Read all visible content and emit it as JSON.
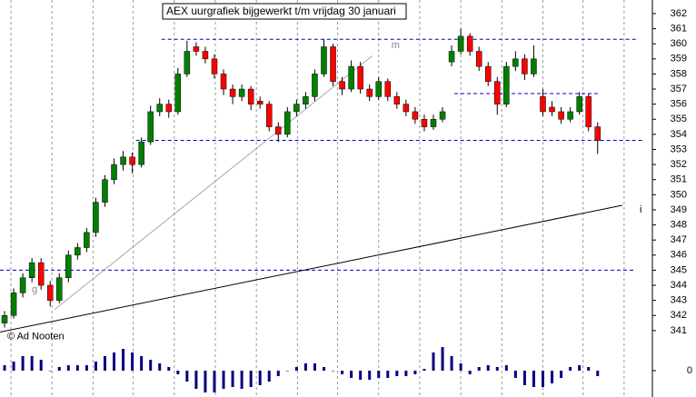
{
  "chart_data": {
    "type": "candlestick",
    "title": "AEX uurgrafiek bijgewerkt t/m vrijdag 30 januari",
    "annotations": [
      {
        "text": "g",
        "x": 3.0,
        "y": 343.7,
        "color": "#888888"
      },
      {
        "text": "m",
        "x": 42.4,
        "y": 359.9,
        "color": "#888888"
      },
      {
        "text": "i",
        "x": 69.6,
        "y": 349.0,
        "color": "#000000"
      },
      {
        "text": "© Ad Nooten",
        "x": 0.3,
        "y": 340.6,
        "color": "#000000"
      }
    ],
    "candles": [
      [
        341.5,
        342.3,
        341.2,
        342.0
      ],
      [
        342.0,
        343.8,
        341.8,
        343.5
      ],
      [
        343.5,
        344.8,
        343.2,
        344.5
      ],
      [
        344.5,
        345.8,
        344.2,
        345.5
      ],
      [
        345.5,
        345.8,
        343.7,
        344.0
      ],
      [
        344.0,
        344.3,
        342.6,
        343.0
      ],
      [
        343.0,
        344.8,
        342.8,
        344.5
      ],
      [
        344.5,
        346.3,
        344.2,
        346.0
      ],
      [
        346.0,
        346.8,
        345.7,
        346.5
      ],
      [
        346.5,
        347.8,
        346.2,
        347.5
      ],
      [
        347.5,
        349.8,
        347.2,
        349.5
      ],
      [
        349.5,
        351.3,
        349.2,
        351.0
      ],
      [
        351.0,
        352.4,
        350.7,
        352.0
      ],
      [
        352.0,
        352.9,
        351.6,
        352.5
      ],
      [
        352.5,
        352.8,
        351.4,
        352.0
      ],
      [
        352.0,
        353.8,
        351.8,
        353.5
      ],
      [
        353.5,
        355.9,
        353.3,
        355.5
      ],
      [
        355.5,
        356.4,
        355.2,
        356.0
      ],
      [
        356.0,
        356.3,
        355.1,
        355.5
      ],
      [
        355.5,
        358.4,
        355.3,
        358.0
      ],
      [
        358.0,
        360.2,
        357.8,
        359.5
      ],
      [
        359.8,
        360.1,
        359.2,
        359.5
      ],
      [
        359.5,
        359.8,
        358.7,
        359.0
      ],
      [
        359.0,
        359.3,
        357.7,
        358.0
      ],
      [
        358.0,
        358.3,
        356.6,
        357.0
      ],
      [
        357.0,
        357.3,
        356.0,
        356.5
      ],
      [
        356.5,
        357.3,
        356.2,
        357.0
      ],
      [
        357.0,
        357.2,
        355.6,
        356.0
      ],
      [
        356.2,
        356.5,
        355.7,
        356.0
      ],
      [
        356.0,
        356.2,
        354.2,
        354.5
      ],
      [
        354.5,
        354.8,
        353.5,
        354.0
      ],
      [
        354.0,
        355.8,
        353.8,
        355.5
      ],
      [
        355.5,
        356.3,
        355.2,
        356.0
      ],
      [
        356.0,
        356.8,
        355.7,
        356.5
      ],
      [
        356.5,
        358.3,
        356.2,
        358.0
      ],
      [
        358.0,
        360.3,
        357.8,
        359.8
      ],
      [
        359.8,
        360.0,
        357.2,
        357.5
      ],
      [
        357.5,
        357.8,
        356.6,
        357.0
      ],
      [
        357.0,
        358.9,
        356.8,
        358.5
      ],
      [
        358.5,
        358.8,
        356.7,
        357.0
      ],
      [
        357.0,
        357.3,
        356.2,
        356.5
      ],
      [
        356.5,
        357.8,
        356.3,
        357.5
      ],
      [
        357.5,
        357.7,
        356.2,
        356.5
      ],
      [
        356.5,
        356.8,
        355.7,
        356.0
      ],
      [
        356.0,
        356.3,
        355.2,
        355.5
      ],
      [
        355.5,
        355.8,
        354.7,
        355.0
      ],
      [
        355.0,
        355.3,
        354.2,
        354.5
      ],
      [
        354.5,
        355.3,
        354.3,
        355.0
      ],
      [
        355.0,
        355.8,
        354.8,
        355.5
      ],
      [
        358.8,
        359.9,
        358.5,
        359.5
      ],
      [
        359.5,
        361.0,
        359.3,
        360.5
      ],
      [
        360.5,
        360.7,
        359.2,
        359.5
      ],
      [
        359.5,
        359.8,
        358.2,
        358.5
      ],
      [
        358.5,
        358.8,
        357.2,
        357.5
      ],
      [
        357.5,
        357.8,
        355.3,
        356.0
      ],
      [
        356.0,
        358.8,
        355.8,
        358.5
      ],
      [
        358.5,
        359.5,
        358.2,
        359.0
      ],
      [
        359.0,
        359.3,
        357.6,
        358.0
      ],
      [
        358.0,
        359.9,
        357.8,
        359.0
      ],
      [
        356.5,
        357.0,
        355.2,
        355.5
      ],
      [
        355.8,
        356.2,
        355.2,
        355.5
      ],
      [
        355.5,
        355.8,
        354.7,
        355.0
      ],
      [
        355.0,
        355.8,
        354.8,
        355.5
      ],
      [
        355.5,
        356.8,
        355.3,
        356.5
      ],
      [
        356.5,
        356.7,
        354.2,
        354.5
      ],
      [
        354.5,
        354.8,
        352.7,
        353.6
      ]
    ],
    "up_color": "#008000",
    "down_color": "#ff0000",
    "xlim": [
      -0.5,
      71
    ],
    "ylim": [
      336.6,
      362.9
    ],
    "yticks": [
      341,
      342,
      343,
      344,
      345,
      346,
      347,
      348,
      349,
      350,
      351,
      352,
      353,
      354,
      355,
      356,
      357,
      358,
      359,
      360,
      361,
      362
    ],
    "xgrid": [
      0.7,
      5.2,
      9.7,
      14.1,
      18.6,
      23.1,
      27.6,
      32.1,
      36.5,
      41.0,
      45.5,
      50.0,
      54.5,
      59.0,
      63.4,
      67.9
    ],
    "hlines": [
      {
        "y": 360.3,
        "x": [
          17.2,
          69.5
        ]
      },
      {
        "y": 353.6,
        "x": [
          14.4,
          70.0
        ]
      },
      {
        "y": 345.0,
        "x": [
          -0.5,
          69.0
        ]
      },
      {
        "y": 356.7,
        "x": [
          49.3,
          65.2
        ]
      }
    ],
    "hline_color": "#0000cc",
    "trendlines": [
      {
        "x": [
          -0.5,
          67.7
        ],
        "y": [
          340.9,
          349.3
        ],
        "color": "#000000"
      },
      {
        "x": [
          5.5,
          40.3
        ],
        "y": [
          342.4,
          359.2
        ],
        "color": "#aaaaaa"
      }
    ],
    "oscillator": {
      "values": [
        3,
        5,
        8,
        8,
        6,
        0,
        2,
        3,
        3,
        3,
        5,
        8,
        10,
        12,
        10,
        8,
        6,
        4,
        2,
        -2,
        -6,
        -10,
        -12,
        -12,
        -10,
        -9,
        -10,
        -9,
        -8,
        -6,
        -3,
        0,
        2,
        4,
        4,
        2,
        0,
        -2,
        -4,
        -5,
        -5,
        -4,
        -4,
        -3,
        -3,
        -2,
        1,
        10,
        13,
        8,
        4,
        -2,
        2,
        3,
        2,
        3,
        -4,
        -8,
        -9,
        -9,
        -7,
        -4,
        2,
        3,
        2,
        -3
      ],
      "lim": [
        -14,
        14
      ],
      "ticks": [
        0
      ],
      "color": "#000080"
    }
  }
}
